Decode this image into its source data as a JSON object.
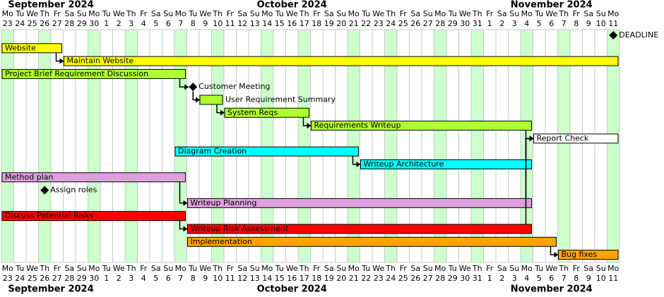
{
  "chart_data": {
    "type": "gantt",
    "first_day": "2024-09-23",
    "months": [
      "September 2024",
      "October 2024",
      "November 2024"
    ],
    "weekdays": [
      "Mo",
      "Tu",
      "We",
      "Th",
      "Fr",
      "Sa",
      "Su",
      "Mo",
      "Tu",
      "We",
      "Th",
      "Fr",
      "Sa",
      "Su",
      "Mo",
      "Tu",
      "We",
      "Th",
      "Fr",
      "Sa",
      "Su",
      "Mo",
      "Tu",
      "We",
      "Th",
      "Fr",
      "Sa",
      "Su",
      "Mo",
      "Tu",
      "We",
      "Th",
      "Fr",
      "Sa",
      "Su",
      "Mo",
      "Tu",
      "We",
      "Th",
      "Fr",
      "Sa",
      "Su",
      "Mo",
      "Tu",
      "We",
      "Th",
      "Fr",
      "Sa",
      "Su",
      "Mo"
    ],
    "days": [
      23,
      24,
      25,
      26,
      27,
      28,
      29,
      30,
      1,
      2,
      3,
      4,
      5,
      6,
      7,
      8,
      9,
      10,
      11,
      12,
      13,
      14,
      15,
      16,
      17,
      18,
      19,
      20,
      21,
      22,
      23,
      24,
      25,
      26,
      27,
      28,
      29,
      30,
      31,
      1,
      2,
      3,
      4,
      5,
      6,
      7,
      8,
      9,
      10,
      11
    ],
    "highlight_weekdays": [
      "Mo",
      "Th"
    ],
    "highlight_color": "#ccffcc",
    "tasks": [
      {
        "name": "DEADLINE",
        "milestone": "2024-11-11"
      },
      {
        "name": "Website",
        "start": "2024-09-23",
        "end": "2024-09-27",
        "color": "#ffff00"
      },
      {
        "name": "Maintain Website",
        "start": "2024-09-28",
        "end": "2024-11-11",
        "color": "#ffff00"
      },
      {
        "name": "Project Brief Requirement Discussion",
        "start": "2024-09-23",
        "end": "2024-10-07",
        "color": "#adff2f"
      },
      {
        "name": "Customer Meeting",
        "milestone": "2024-10-08"
      },
      {
        "name": "User Requirement Summary",
        "start": "2024-10-09",
        "end": "2024-10-10",
        "color": "#adff2f"
      },
      {
        "name": "System Reqs",
        "start": "2024-10-11",
        "end": "2024-10-17",
        "color": "#adff2f"
      },
      {
        "name": "Requirements Writeup",
        "start": "2024-10-18",
        "end": "2024-11-04",
        "color": "#adff2f"
      },
      {
        "name": "Report Check",
        "start": "2024-11-05",
        "end": "2024-11-11",
        "color": "#ffffff"
      },
      {
        "name": "Diagram Creation",
        "start": "2024-10-07",
        "end": "2024-10-21",
        "color": "#00ffff"
      },
      {
        "name": "Writeup Architecture",
        "start": "2024-10-22",
        "end": "2024-11-04",
        "color": "#00ffff"
      },
      {
        "name": "Method plan",
        "start": "2024-09-23",
        "end": "2024-10-07",
        "color": "#dda0dd"
      },
      {
        "name": "Assign roles",
        "milestone": "2024-09-26"
      },
      {
        "name": "Writeup Planning",
        "start": "2024-10-08",
        "end": "2024-11-04",
        "color": "#dda0dd"
      },
      {
        "name": "Discuss Potential Risks",
        "start": "2024-09-23",
        "end": "2024-10-07",
        "color": "#ff0000"
      },
      {
        "name": "Writeup Risk Assessment",
        "start": "2024-10-08",
        "end": "2024-11-04",
        "color": "#ff0000"
      },
      {
        "name": "Implementation",
        "start": "2024-10-08",
        "end": "2024-11-06",
        "color": "#ffa500"
      },
      {
        "name": "Bug fixes",
        "start": "2024-11-07",
        "end": "2024-11-11",
        "color": "#ffa500"
      }
    ],
    "dependencies": [
      [
        1,
        2
      ],
      [
        3,
        4
      ],
      [
        4,
        5
      ],
      [
        5,
        6
      ],
      [
        6,
        7
      ],
      [
        7,
        8
      ],
      [
        9,
        10
      ],
      [
        10,
        8
      ],
      [
        11,
        13
      ],
      [
        13,
        8
      ],
      [
        14,
        15
      ],
      [
        15,
        8
      ],
      [
        16,
        17
      ]
    ]
  }
}
